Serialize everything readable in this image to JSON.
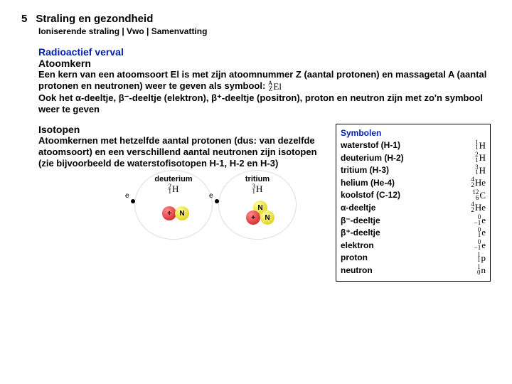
{
  "chapter": {
    "number": "5",
    "title": "Straling en gezondheid"
  },
  "subtitle": "Ioniserende straling | Vwo | Samenvatting",
  "section1": {
    "heading": "Radioactief verval",
    "subheading": "Atoomkern",
    "text_pre": "Een kern van een atoomsoort El is met zijn atoomnummer Z (aantal protonen) en massagetal A (aantal protonen en neutronen) weer te geven als symbool: ",
    "symbol_top": "A",
    "symbol_bot": "Z",
    "symbol_el": "El",
    "text_post": "Ook het α-deeltje, β⁻-deeltje (elektron), β⁺-deeltje (positron), proton en neutron zijn met zo'n symbool weer te geven"
  },
  "isotopes": {
    "heading": "Isotopen",
    "body": "Atoomkernen met hetzelfde aantal protonen (dus: van dezelfde atoomsoort) en een verschillend aantal neutronen zijn isotopen (zie bijvoorbeeld de waterstofisotopen H-1, H-2 en H-3)"
  },
  "symbol_table": {
    "title": "Symbolen",
    "rows": [
      {
        "label": "waterstof (H-1)",
        "A": "1",
        "Z": "1",
        "el": "H"
      },
      {
        "label": "deuterium (H-2)",
        "A": "2",
        "Z": "1",
        "el": "H"
      },
      {
        "label": "tritium (H-3)",
        "A": "3",
        "Z": "1",
        "el": "H"
      },
      {
        "label": "helium (He-4)",
        "A": "4",
        "Z": "2",
        "el": "He"
      },
      {
        "label": "koolstof (C-12)",
        "A": "12",
        "Z": "6",
        "el": "C"
      },
      {
        "label": "α-deeltje",
        "A": "4",
        "Z": "2",
        "el": "He"
      },
      {
        "label": "β⁻-deeltje",
        "A": "0",
        "Z": "−1",
        "el": "e"
      },
      {
        "label": "β⁺-deeltje",
        "A": "0",
        "Z": "1",
        "el": "e"
      },
      {
        "label": "elektron",
        "A": "0",
        "Z": "−1",
        "el": "e"
      },
      {
        "label": "proton",
        "A": "1",
        "Z": "1",
        "el": "p"
      },
      {
        "label": "neutron",
        "A": "1",
        "Z": "0",
        "el": "n"
      }
    ]
  },
  "diagrams": {
    "deuterium": {
      "label": "deuterium",
      "A": "2",
      "Z": "1",
      "el": "H"
    },
    "tritium": {
      "label": "tritium",
      "A": "3",
      "Z": "1",
      "el": "H"
    }
  },
  "colors": {
    "heading_blue": "#0020b0",
    "text_black": "#000000",
    "proton": "#c81414",
    "neutron": "#e6d400",
    "background": "#ffffff",
    "border": "#000000"
  }
}
